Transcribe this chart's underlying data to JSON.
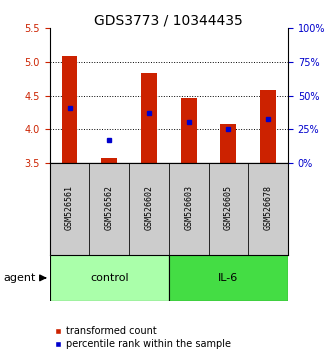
{
  "title": "GDS3773 / 10344435",
  "samples": [
    "GSM526561",
    "GSM526562",
    "GSM526602",
    "GSM526603",
    "GSM526605",
    "GSM526678"
  ],
  "red_bar_bottom": [
    3.5,
    3.5,
    3.5,
    3.5,
    3.5,
    3.5
  ],
  "red_bar_top": [
    5.09,
    3.57,
    4.84,
    4.46,
    4.08,
    4.58
  ],
  "blue_dot_y": [
    4.32,
    3.84,
    4.24,
    4.1,
    4.0,
    4.15
  ],
  "groups": [
    {
      "label": "control",
      "indices": [
        0,
        1,
        2
      ],
      "color": "#aaffaa"
    },
    {
      "label": "IL-6",
      "indices": [
        3,
        4,
        5
      ],
      "color": "#44dd44"
    }
  ],
  "ylim": [
    3.5,
    5.5
  ],
  "yticks_left": [
    3.5,
    4.0,
    4.5,
    5.0,
    5.5
  ],
  "yticks_right_labels": [
    "0%",
    "25%",
    "50%",
    "75%",
    "100%"
  ],
  "yticks_right_vals": [
    3.5,
    4.0,
    4.5,
    5.0,
    5.5
  ],
  "bar_color": "#CC2200",
  "dot_color": "#0000CC",
  "title_fontsize": 10,
  "tick_fontsize": 7,
  "sample_fontsize": 6,
  "group_fontsize": 8,
  "legend_fontsize": 7,
  "agent_fontsize": 8,
  "background_color": "#ffffff",
  "bar_width": 0.4
}
